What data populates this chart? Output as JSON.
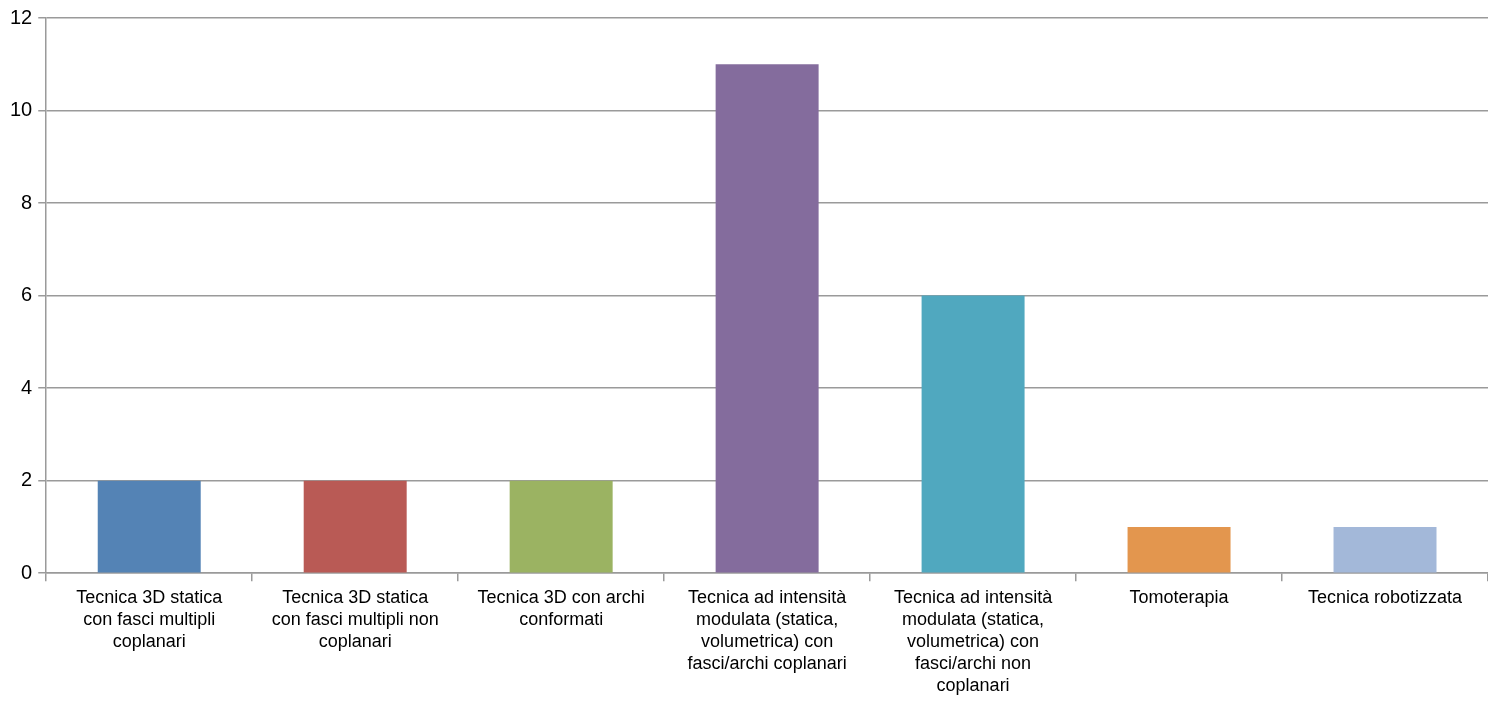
{
  "chart_data": {
    "type": "bar",
    "categories": [
      "Tecnica 3D statica con fasci multipli coplanari",
      "Tecnica 3D statica con fasci multipli non coplanari",
      "Tecnica 3D con archi conformati",
      "Tecnica ad intensità modulata (statica, volumetrica) con fasci/archi coplanari",
      "Tecnica ad intensità modulata (statica, volumetrica) con fasci/archi non coplanari",
      "Tomoterapia",
      "Tecnica robotizzata"
    ],
    "values": [
      2,
      2,
      2,
      11,
      6,
      1,
      1
    ],
    "colors": [
      "#5483b5",
      "#b95a55",
      "#9bb362",
      "#846c9d",
      "#50a8bf",
      "#e3964e",
      "#a3b8d9"
    ],
    "ylim": [
      0,
      12
    ],
    "yticks": [
      0,
      2,
      4,
      6,
      8,
      10,
      12
    ],
    "grid": "y"
  }
}
